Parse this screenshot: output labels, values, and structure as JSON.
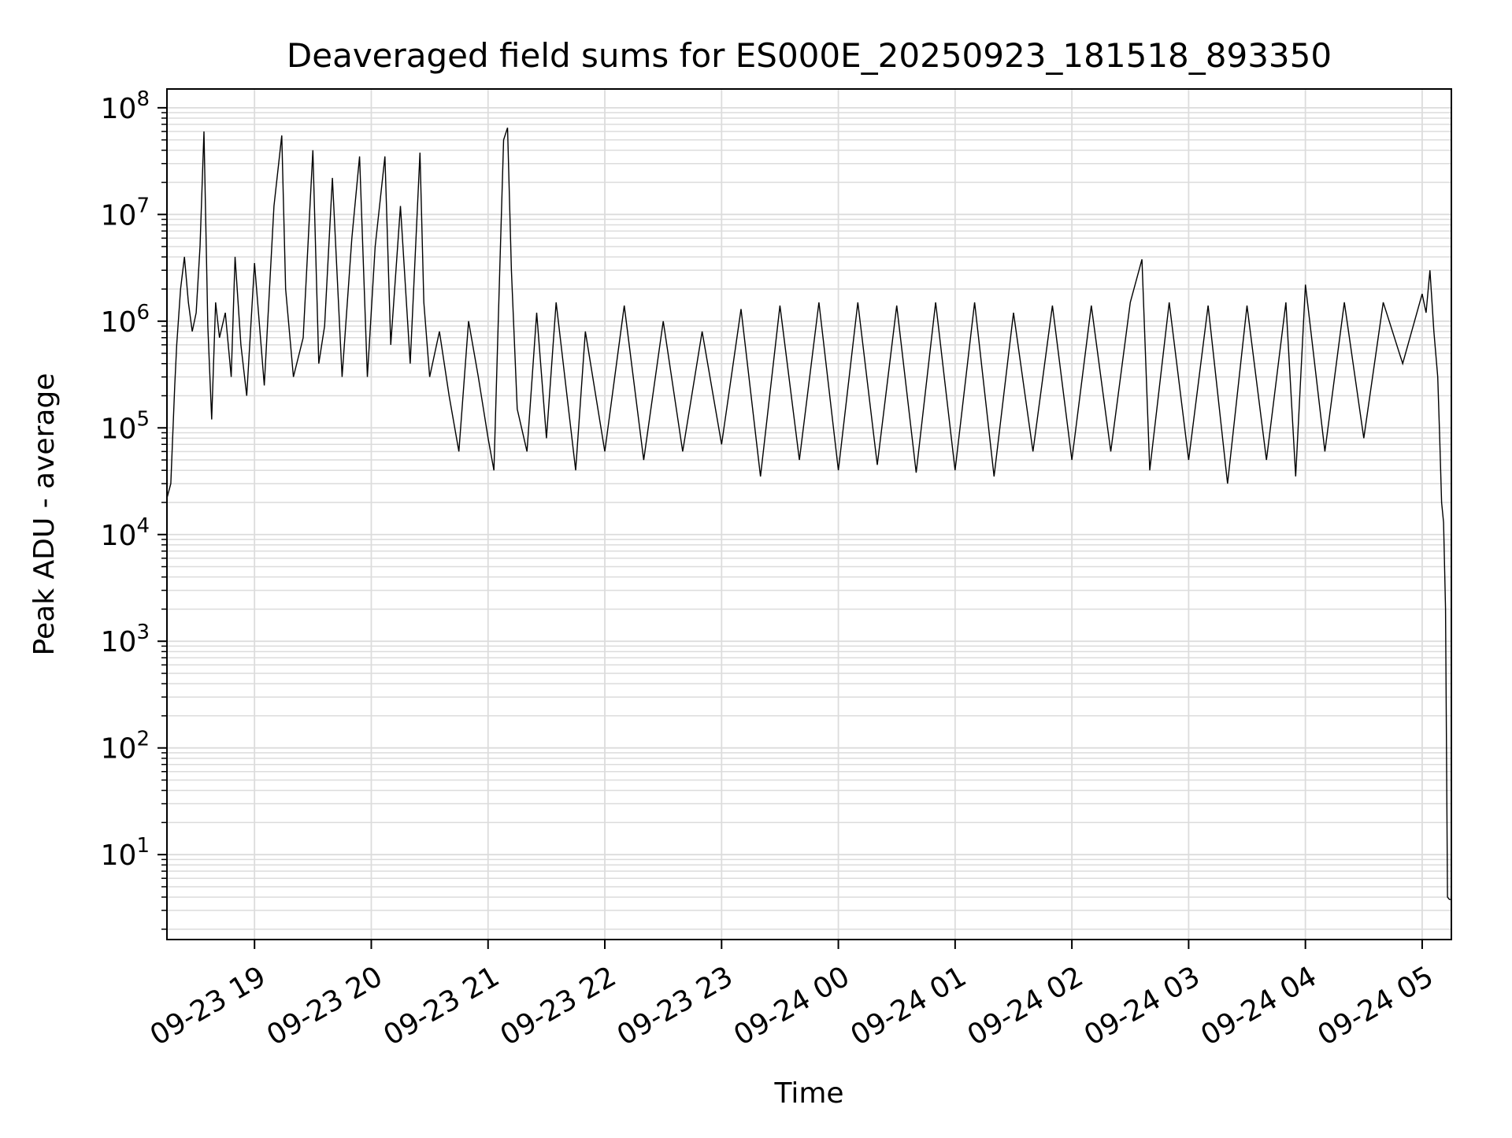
{
  "chart_data": {
    "type": "line",
    "title": "Deaveraged field sums for ES000E_20250923_181518_893350",
    "xlabel": "Time",
    "ylabel": "Peak ADU - average",
    "xscale": "time",
    "yscale": "log",
    "xlim": [
      "2025-09-23 18:15",
      "2025-09-24 05:15"
    ],
    "ylim": [
      1.6,
      150000000
    ],
    "grid": true,
    "legend": "none",
    "line_color": "#000000",
    "grid_color": "#dcdcdc",
    "x_tick_labels": [
      "09-23 19",
      "09-23 20",
      "09-23 21",
      "09-23 22",
      "09-23 23",
      "09-24 00",
      "09-24 01",
      "09-24 02",
      "09-24 03",
      "09-24 04",
      "09-24 05"
    ],
    "x_ticks": [
      "2025-09-23 19:00",
      "2025-09-23 20:00",
      "2025-09-23 21:00",
      "2025-09-23 22:00",
      "2025-09-23 23:00",
      "2025-09-24 00:00",
      "2025-09-24 01:00",
      "2025-09-24 02:00",
      "2025-09-24 03:00",
      "2025-09-24 04:00",
      "2025-09-24 05:00"
    ],
    "y_ticks": [
      {
        "value": 10,
        "base": "10",
        "exp": "1"
      },
      {
        "value": 100,
        "base": "10",
        "exp": "2"
      },
      {
        "value": 1000,
        "base": "10",
        "exp": "3"
      },
      {
        "value": 10000,
        "base": "10",
        "exp": "4"
      },
      {
        "value": 100000,
        "base": "10",
        "exp": "5"
      },
      {
        "value": 1000000,
        "base": "10",
        "exp": "6"
      },
      {
        "value": 10000000,
        "base": "10",
        "exp": "7"
      },
      {
        "value": 100000000,
        "base": "10",
        "exp": "8"
      }
    ],
    "series": [
      {
        "x": [
          "2025-09-23 18:15",
          "2025-09-23 18:17",
          "2025-09-23 18:19",
          "2025-09-23 18:20",
          "2025-09-23 18:22",
          "2025-09-23 18:24",
          "2025-09-23 18:26",
          "2025-09-23 18:28",
          "2025-09-23 18:30",
          "2025-09-23 18:32",
          "2025-09-23 18:34",
          "2025-09-23 18:36",
          "2025-09-23 18:38",
          "2025-09-23 18:40",
          "2025-09-23 18:42",
          "2025-09-23 18:45",
          "2025-09-23 18:48",
          "2025-09-23 18:50",
          "2025-09-23 18:53",
          "2025-09-23 18:56",
          "2025-09-23 19:00",
          "2025-09-23 19:05",
          "2025-09-23 19:10",
          "2025-09-23 19:14",
          "2025-09-23 19:16",
          "2025-09-23 19:20",
          "2025-09-23 19:25",
          "2025-09-23 19:30",
          "2025-09-23 19:33",
          "2025-09-23 19:36",
          "2025-09-23 19:40",
          "2025-09-23 19:45",
          "2025-09-23 19:50",
          "2025-09-23 19:54",
          "2025-09-23 19:58",
          "2025-09-23 20:02",
          "2025-09-23 20:07",
          "2025-09-23 20:10",
          "2025-09-23 20:15",
          "2025-09-23 20:20",
          "2025-09-23 20:25",
          "2025-09-23 20:27",
          "2025-09-23 20:30",
          "2025-09-23 20:35",
          "2025-09-23 20:40",
          "2025-09-23 20:45",
          "2025-09-23 20:50",
          "2025-09-23 20:55",
          "2025-09-23 21:00",
          "2025-09-23 21:03",
          "2025-09-23 21:06",
          "2025-09-23 21:08",
          "2025-09-23 21:10",
          "2025-09-23 21:12",
          "2025-09-23 21:15",
          "2025-09-23 21:20",
          "2025-09-23 21:25",
          "2025-09-23 21:30",
          "2025-09-23 21:35",
          "2025-09-23 21:45",
          "2025-09-23 21:50",
          "2025-09-23 22:00",
          "2025-09-23 22:10",
          "2025-09-23 22:20",
          "2025-09-23 22:30",
          "2025-09-23 22:40",
          "2025-09-23 22:50",
          "2025-09-23 23:00",
          "2025-09-23 23:10",
          "2025-09-23 23:20",
          "2025-09-23 23:30",
          "2025-09-23 23:40",
          "2025-09-23 23:50",
          "2025-09-24 00:00",
          "2025-09-24 00:10",
          "2025-09-24 00:20",
          "2025-09-24 00:30",
          "2025-09-24 00:40",
          "2025-09-24 00:50",
          "2025-09-24 01:00",
          "2025-09-24 01:10",
          "2025-09-24 01:20",
          "2025-09-24 01:30",
          "2025-09-24 01:40",
          "2025-09-24 01:50",
          "2025-09-24 02:00",
          "2025-09-24 02:10",
          "2025-09-24 02:20",
          "2025-09-24 02:30",
          "2025-09-24 02:36",
          "2025-09-24 02:40",
          "2025-09-24 02:50",
          "2025-09-24 03:00",
          "2025-09-24 03:10",
          "2025-09-24 03:20",
          "2025-09-24 03:30",
          "2025-09-24 03:40",
          "2025-09-24 03:50",
          "2025-09-24 03:55",
          "2025-09-24 04:00",
          "2025-09-24 04:10",
          "2025-09-24 04:20",
          "2025-09-24 04:30",
          "2025-09-24 04:40",
          "2025-09-24 04:50",
          "2025-09-24 05:00",
          "2025-09-24 05:02",
          "2025-09-24 05:04",
          "2025-09-24 05:06",
          "2025-09-24 05:08",
          "2025-09-24 05:09",
          "2025-09-24 05:10",
          "2025-09-24 05:11",
          "2025-09-24 05:12",
          "2025-09-24 05:13",
          "2025-09-24 05:14",
          "2025-09-24 05:15"
        ],
        "y": [
          22000,
          30000,
          250000,
          600000,
          2000000,
          4000000,
          1500000,
          800000,
          1200000,
          5000000,
          60000000,
          900000,
          120000,
          1500000,
          700000,
          1200000,
          300000,
          4000000,
          600000,
          200000,
          3500000,
          250000,
          12000000,
          55000000,
          2000000,
          300000,
          700000,
          40000000,
          400000,
          900000,
          22000000,
          300000,
          6000000,
          35000000,
          300000,
          5000000,
          35000000,
          600000,
          12000000,
          400000,
          38000000,
          1500000,
          300000,
          800000,
          200000,
          60000,
          1000000,
          300000,
          80000,
          40000,
          3000000,
          50000000,
          65000000,
          3000000,
          150000,
          60000,
          1200000,
          80000,
          1500000,
          40000,
          800000,
          60000,
          1400000,
          50000,
          1000000,
          60000,
          800000,
          70000,
          1300000,
          35000,
          1400000,
          50000,
          1500000,
          40000,
          1500000,
          45000,
          1400000,
          38000,
          1500000,
          40000,
          1500000,
          35000,
          1200000,
          60000,
          1400000,
          50000,
          1400000,
          60000,
          1500000,
          3800000,
          40000,
          1500000,
          50000,
          1400000,
          30000,
          1400000,
          50000,
          1500000,
          35000,
          2200000,
          60000,
          1500000,
          80000,
          1500000,
          400000,
          1800000,
          1200000,
          3000000,
          800000,
          300000,
          80000,
          20000,
          13000,
          2000,
          4,
          3.8,
          3.8
        ]
      }
    ]
  }
}
